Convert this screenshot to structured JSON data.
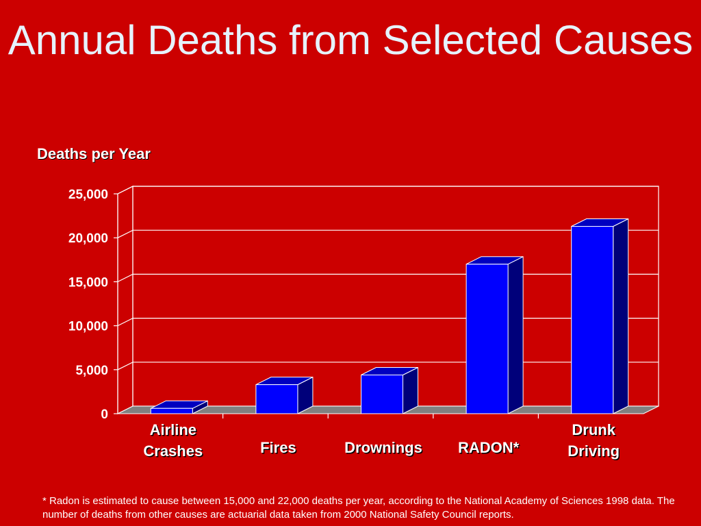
{
  "slide": {
    "title": "Annual Deaths from Selected Causes",
    "footnote": "* Radon is estimated to cause between 15,000 and 22,000 deaths per year, according to the National Academy of Sciences 1998 data.  The number of deaths from other causes are actuarial data taken from 2000 National Safety Council reports."
  },
  "colors": {
    "background": "#cc0000",
    "bar_front": "#0000ff",
    "bar_side": "#00007a",
    "bar_top": "#0000c0",
    "floor": "#808080",
    "title": "#e6f3ff"
  },
  "chart_data": {
    "type": "bar",
    "ylabel": "Deaths per Year",
    "ylim": [
      0,
      25000
    ],
    "yticks": [
      0,
      5000,
      10000,
      15000,
      20000,
      25000
    ],
    "ytick_labels": [
      "0",
      "5,000",
      "10,000",
      "15,000",
      "20,000",
      "25,000"
    ],
    "grid": true,
    "categories": [
      [
        "Airline",
        "Crashes"
      ],
      [
        "Fires"
      ],
      [
        "Drownings"
      ],
      [
        "RADON*"
      ],
      [
        "Drunk",
        "Driving"
      ]
    ],
    "values": [
      600,
      3300,
      4400,
      17000,
      21300
    ]
  }
}
